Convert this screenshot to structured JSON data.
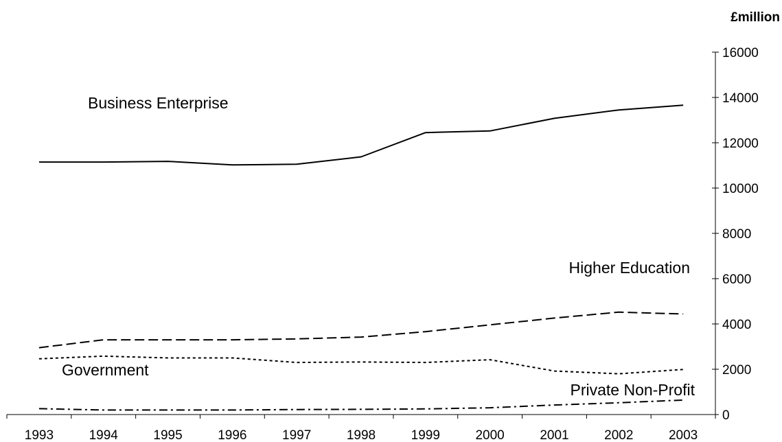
{
  "chart_data": {
    "type": "line",
    "unit_label": "£million",
    "x": [
      "1993",
      "1994",
      "1995",
      "1996",
      "1997",
      "1998",
      "1999",
      "2000",
      "2001",
      "2002",
      "2003"
    ],
    "ylim": [
      0,
      16000
    ],
    "yticks": [
      "0",
      "2000",
      "4000",
      "6000",
      "8000",
      "10000",
      "12000",
      "14000",
      "16000"
    ],
    "y_axis_position": "right",
    "grid": false,
    "legend": "inline labels",
    "series": [
      {
        "name": "Business Enterprise",
        "style": "solid",
        "values": [
          11150,
          11150,
          11180,
          11020,
          11050,
          11380,
          12450,
          12520,
          13080,
          13450,
          13660
        ]
      },
      {
        "name": "Higher Education",
        "style": "dashed",
        "values": [
          2950,
          3300,
          3300,
          3300,
          3340,
          3420,
          3660,
          3960,
          4260,
          4520,
          4440
        ]
      },
      {
        "name": "Government",
        "style": "dotted",
        "values": [
          2460,
          2580,
          2500,
          2500,
          2300,
          2320,
          2300,
          2420,
          1920,
          1800,
          1990
        ]
      },
      {
        "name": "Private Non-Profit",
        "style": "dash-dot",
        "values": [
          260,
          200,
          200,
          200,
          220,
          230,
          250,
          300,
          420,
          520,
          640
        ]
      }
    ]
  }
}
